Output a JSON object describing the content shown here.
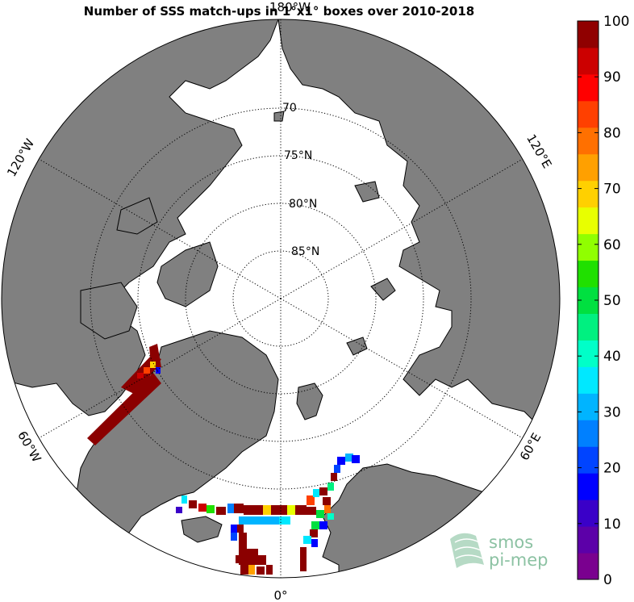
{
  "title": "Number of SSS match-ups in 1°x1° boxes over 2010-2018",
  "parallel_labels": [
    "70",
    "75°N",
    "80°N",
    "85°N"
  ],
  "meridian_labels": {
    "top": "180°W",
    "left_upper": "120°W",
    "left_lower": "60°W",
    "bottom": "0°",
    "right_lower": "60°E",
    "right_upper": "120°E"
  },
  "colorbar": {
    "ticks": [
      "0",
      "10",
      "20",
      "30",
      "40",
      "50",
      "60",
      "70",
      "80",
      "90",
      "100"
    ],
    "colors": [
      "#7a008f",
      "#5c00a8",
      "#3a00c8",
      "#0000ff",
      "#0044ff",
      "#0080ff",
      "#00b4ff",
      "#00e8ff",
      "#00ffc8",
      "#00f080",
      "#00e040",
      "#20e000",
      "#90ff00",
      "#e8ff00",
      "#ffd000",
      "#ffa000",
      "#ff7000",
      "#ff4000",
      "#ff0000",
      "#cc0000",
      "#900000"
    ]
  },
  "colors": {
    "land": "#808080",
    "ocean": "#ffffff",
    "high_count": "#8b0000",
    "logo_green": "#8cc2a3"
  },
  "logo": {
    "line1": "smos",
    "line2": "pi-mep"
  }
}
